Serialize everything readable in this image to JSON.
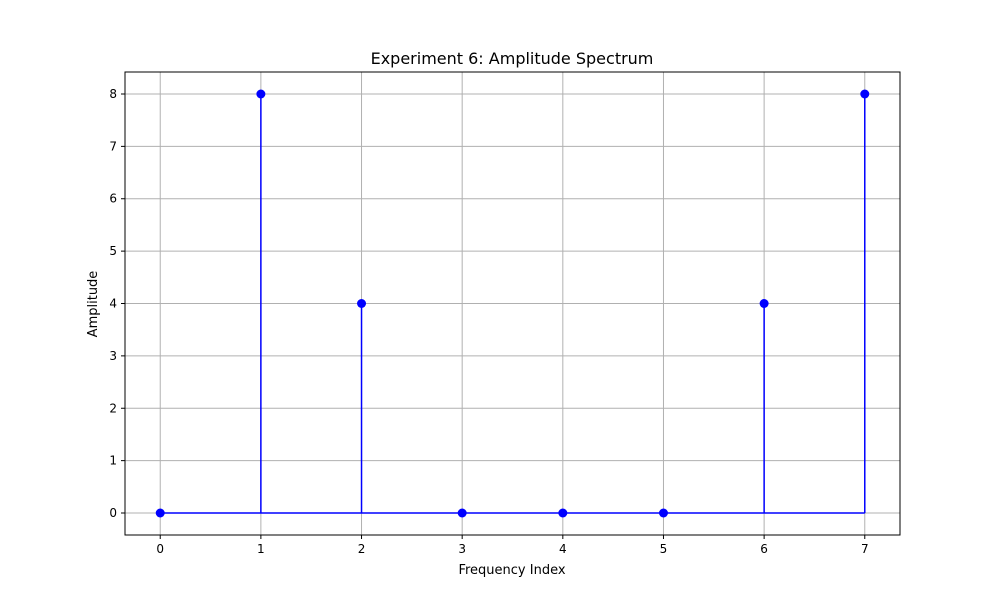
{
  "chart_data": {
    "type": "stem",
    "title": "Experiment 6: Amplitude Spectrum",
    "xlabel": "Frequency Index",
    "ylabel": "Amplitude",
    "x": [
      0,
      1,
      2,
      3,
      4,
      5,
      6,
      7
    ],
    "values": [
      0,
      8,
      4,
      0,
      0,
      0,
      4,
      8
    ],
    "xlim": [
      -0.35,
      7.35
    ],
    "ylim": [
      -0.42,
      8.42
    ],
    "xticks": [
      "0",
      "1",
      "2",
      "3",
      "4",
      "5",
      "6",
      "7"
    ],
    "yticks": [
      "0",
      "1",
      "2",
      "3",
      "4",
      "5",
      "6",
      "7",
      "8"
    ],
    "grid": true,
    "colors": {
      "stem": "#0000ff",
      "grid": "#b0b0b0",
      "axes": "#000000"
    }
  }
}
